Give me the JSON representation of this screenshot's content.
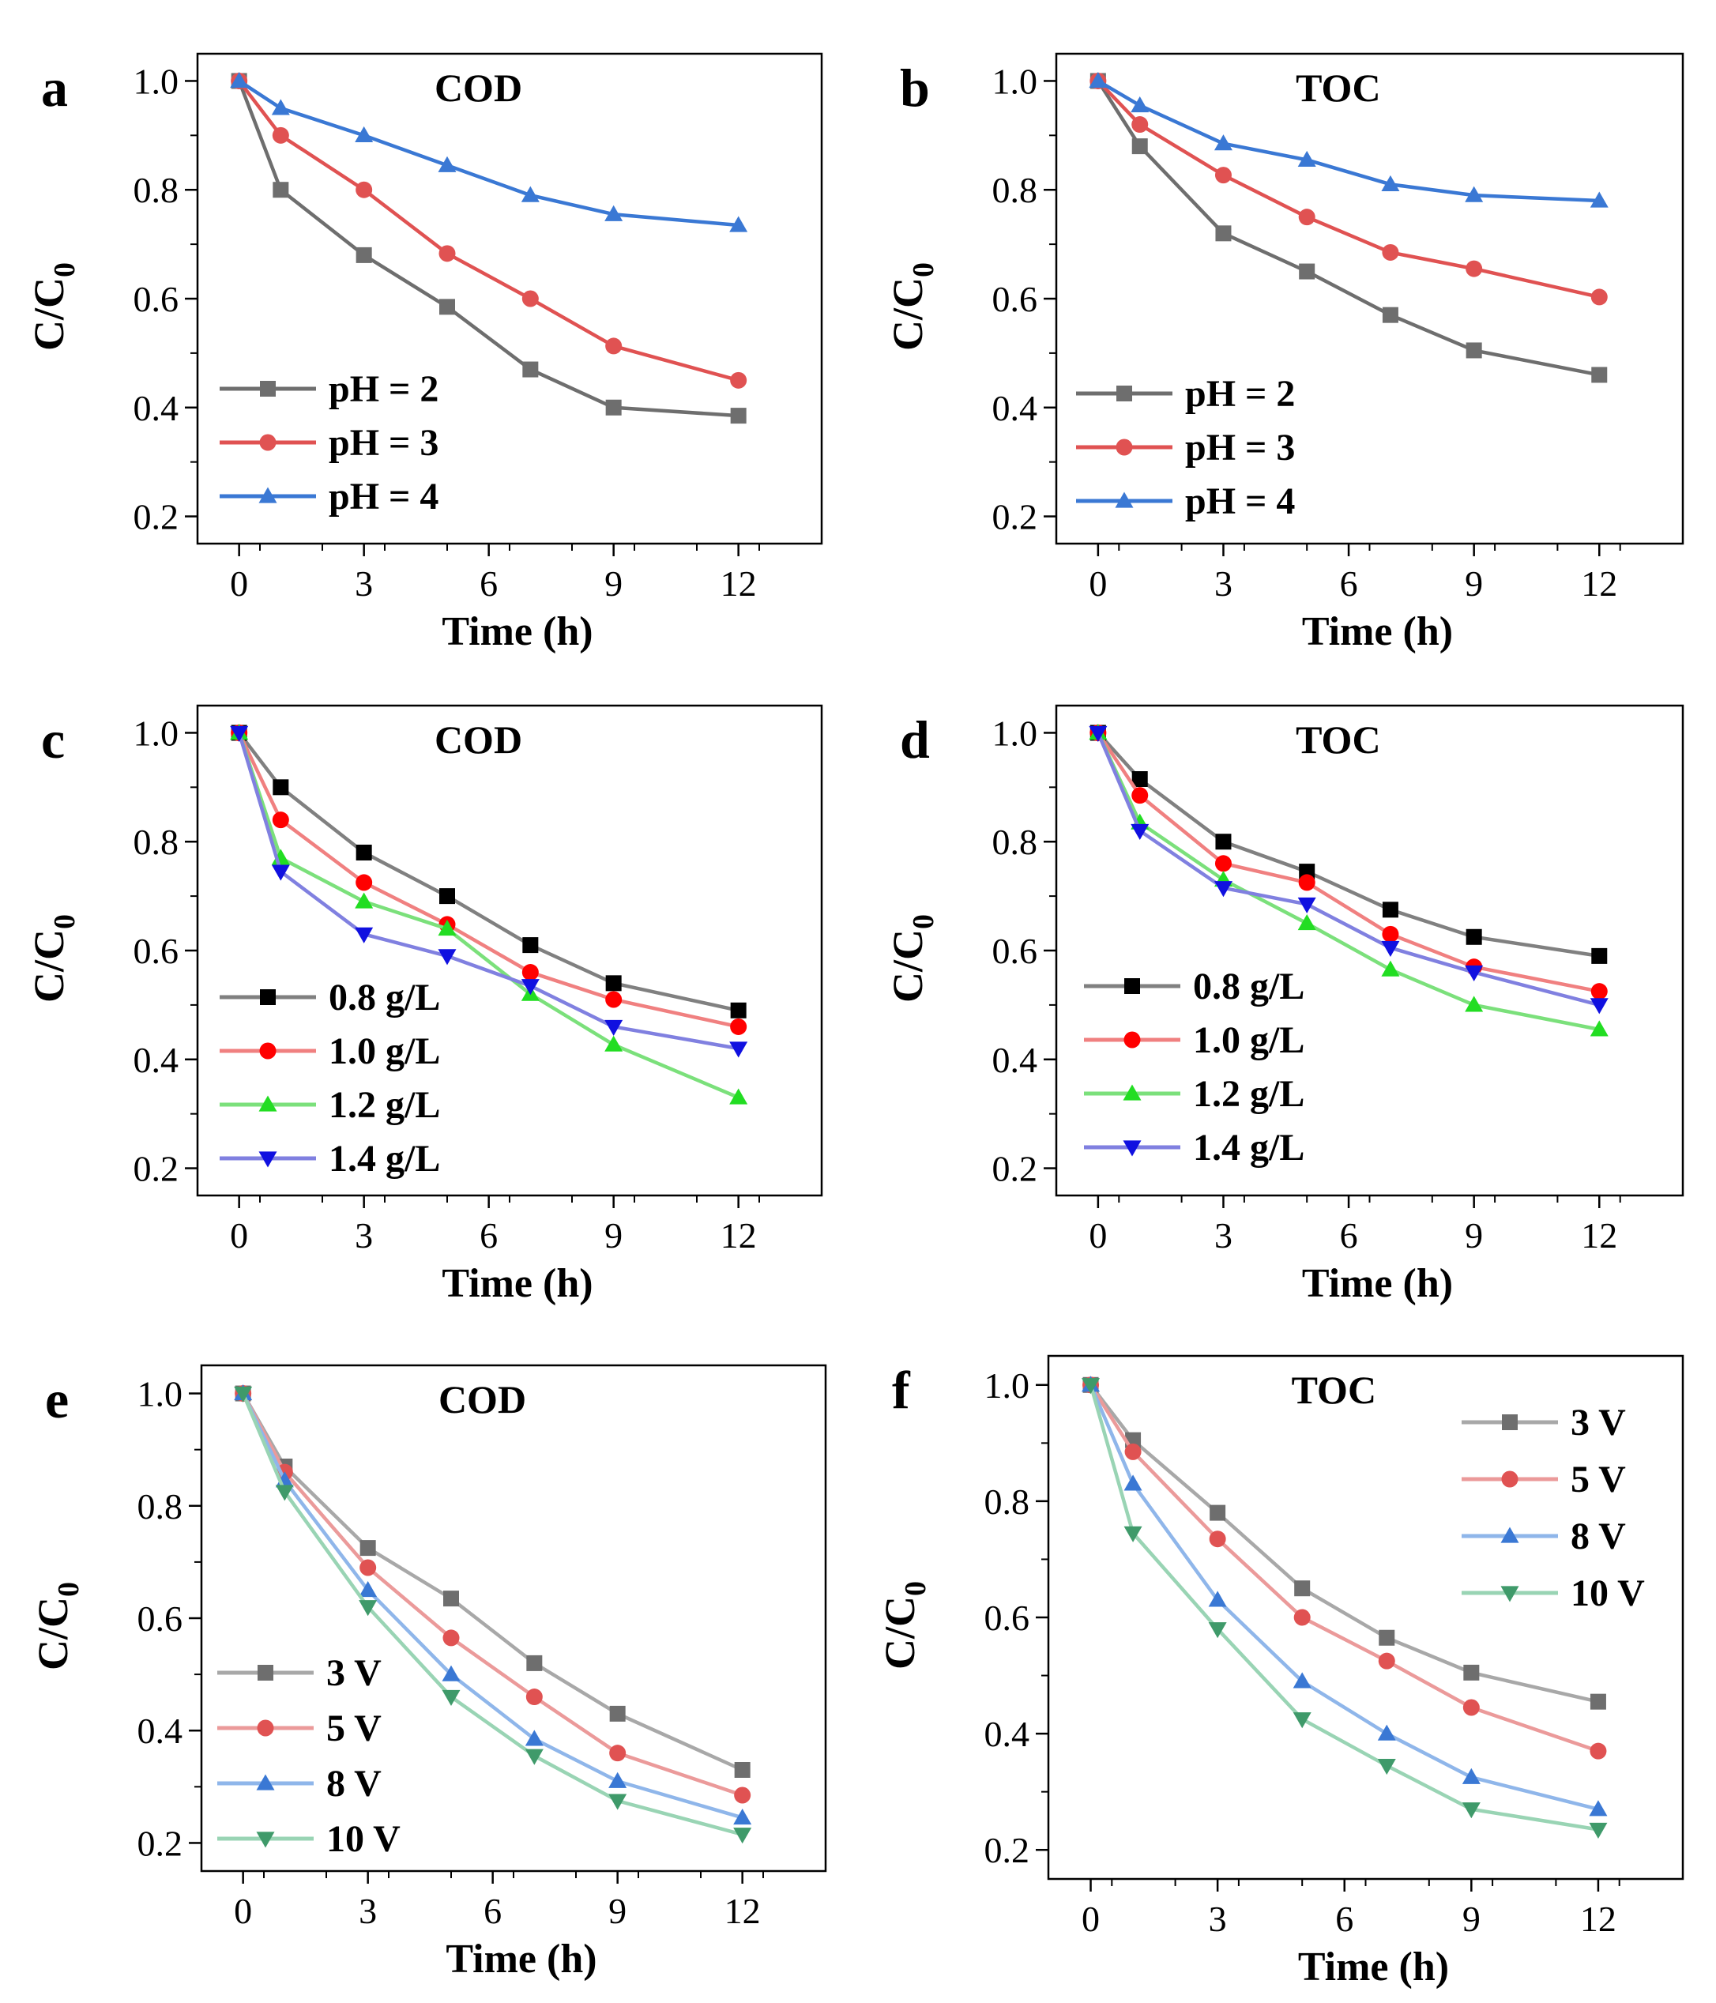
{
  "chart_data": [
    {
      "panel": "a",
      "title": "COD",
      "type": "line",
      "xlabel": "Time (h)",
      "ylabel": "C/C0",
      "ylabel_main": "C/C",
      "ylabel_sub": "0",
      "xticks": [
        0,
        3,
        6,
        9,
        12
      ],
      "yticks": [
        "0.2",
        "0.4",
        "0.6",
        "0.8",
        "1.0"
      ],
      "xlim": [
        -1,
        14
      ],
      "ylim": [
        0.15,
        1.05
      ],
      "x": [
        0,
        1,
        3,
        5,
        7,
        9,
        12
      ],
      "legend_position": "bottom-left",
      "series": [
        {
          "name": "pH = 2",
          "color": "#6e6e6e",
          "marker": "square",
          "values": [
            1.0,
            0.8,
            0.68,
            0.585,
            0.47,
            0.4,
            0.385
          ]
        },
        {
          "name": "pH = 3",
          "color": "#e05252",
          "marker": "circle",
          "values": [
            1.0,
            0.9,
            0.8,
            0.683,
            0.6,
            0.513,
            0.45
          ]
        },
        {
          "name": "pH = 4",
          "color": "#3a78d4",
          "marker": "triangle-up",
          "values": [
            1.0,
            0.95,
            0.9,
            0.845,
            0.79,
            0.755,
            0.735
          ]
        }
      ]
    },
    {
      "panel": "b",
      "title": "TOC",
      "type": "line",
      "xlabel": "Time (h)",
      "ylabel": "C/C0",
      "ylabel_main": "C/C",
      "ylabel_sub": "0",
      "xticks": [
        0,
        3,
        6,
        9,
        12
      ],
      "yticks": [
        "0.2",
        "0.4",
        "0.6",
        "0.8",
        "1.0"
      ],
      "xlim": [
        -1,
        14
      ],
      "ylim": [
        0.15,
        1.05
      ],
      "x": [
        0,
        1,
        3,
        5,
        7,
        9,
        12
      ],
      "legend_position": "bottom-left",
      "series": [
        {
          "name": "pH = 2",
          "color": "#6e6e6e",
          "marker": "square",
          "values": [
            1.0,
            0.88,
            0.72,
            0.65,
            0.57,
            0.505,
            0.46
          ]
        },
        {
          "name": "pH = 3",
          "color": "#e05252",
          "marker": "circle",
          "values": [
            1.0,
            0.92,
            0.827,
            0.75,
            0.685,
            0.655,
            0.603
          ]
        },
        {
          "name": "pH = 4",
          "color": "#3a78d4",
          "marker": "triangle-up",
          "values": [
            1.0,
            0.955,
            0.885,
            0.855,
            0.81,
            0.79,
            0.78
          ]
        }
      ]
    },
    {
      "panel": "c",
      "title": "COD",
      "type": "line",
      "xlabel": "Time (h)",
      "ylabel": "C/C0",
      "ylabel_main": "C/C",
      "ylabel_sub": "0",
      "xticks": [
        0,
        3,
        6,
        9,
        12
      ],
      "yticks": [
        "0.2",
        "0.4",
        "0.6",
        "0.8",
        "1.0"
      ],
      "xlim": [
        -1,
        14
      ],
      "ylim": [
        0.15,
        1.05
      ],
      "x": [
        0,
        1,
        3,
        5,
        7,
        9,
        12
      ],
      "legend_position": "bottom-left",
      "series": [
        {
          "name": "0.8 g/L",
          "color": "#000000",
          "line_color": "#808080",
          "marker": "square",
          "values": [
            1.0,
            0.9,
            0.78,
            0.7,
            0.61,
            0.54,
            0.49
          ]
        },
        {
          "name": "1.0 g/L",
          "color": "#ff0000",
          "line_color": "#f08080",
          "marker": "circle",
          "values": [
            1.0,
            0.84,
            0.725,
            0.648,
            0.56,
            0.51,
            0.46
          ]
        },
        {
          "name": "1.2 g/L",
          "color": "#22dd22",
          "line_color": "#7be07b",
          "marker": "triangle-up",
          "values": [
            1.0,
            0.77,
            0.69,
            0.64,
            0.52,
            0.427,
            0.33
          ]
        },
        {
          "name": "1.4 g/L",
          "color": "#1010e0",
          "line_color": "#8080e0",
          "marker": "triangle-down",
          "values": [
            1.0,
            0.745,
            0.63,
            0.59,
            0.535,
            0.46,
            0.42
          ]
        }
      ]
    },
    {
      "panel": "d",
      "title": "TOC",
      "type": "line",
      "xlabel": "Time (h)",
      "ylabel": "C/C0",
      "ylabel_main": "C/C",
      "ylabel_sub": "0",
      "xticks": [
        0,
        3,
        6,
        9,
        12
      ],
      "yticks": [
        "0.2",
        "0.4",
        "0.6",
        "0.8",
        "1.0"
      ],
      "xlim": [
        -1,
        14
      ],
      "ylim": [
        0.15,
        1.05
      ],
      "x": [
        0,
        1,
        3,
        5,
        7,
        9,
        12
      ],
      "legend_position": "bottom-left",
      "series": [
        {
          "name": "0.8 g/L",
          "color": "#000000",
          "line_color": "#808080",
          "marker": "square",
          "values": [
            1.0,
            0.915,
            0.8,
            0.745,
            0.675,
            0.625,
            0.59
          ]
        },
        {
          "name": "1.0 g/L",
          "color": "#ff0000",
          "line_color": "#f08080",
          "marker": "circle",
          "values": [
            1.0,
            0.885,
            0.76,
            0.725,
            0.63,
            0.57,
            0.525
          ]
        },
        {
          "name": "1.2 g/L",
          "color": "#22dd22",
          "line_color": "#7be07b",
          "marker": "triangle-up",
          "values": [
            1.0,
            0.835,
            0.73,
            0.65,
            0.565,
            0.5,
            0.455
          ]
        },
        {
          "name": "1.4 g/L",
          "color": "#1010e0",
          "line_color": "#8080e0",
          "marker": "triangle-down",
          "values": [
            1.0,
            0.82,
            0.715,
            0.685,
            0.605,
            0.56,
            0.5
          ]
        }
      ]
    },
    {
      "panel": "e",
      "title": "COD",
      "type": "line",
      "xlabel": "Time (h)",
      "ylabel": "C/C0",
      "ylabel_main": "C/C",
      "ylabel_sub": "0",
      "xticks": [
        0,
        3,
        6,
        9,
        12
      ],
      "yticks": [
        "0.2",
        "0.4",
        "0.6",
        "0.8",
        "1.0"
      ],
      "xlim": [
        -1,
        14
      ],
      "ylim": [
        0.15,
        1.05
      ],
      "x": [
        0,
        1,
        3,
        5,
        7,
        9,
        12
      ],
      "legend_position": "bottom-left",
      "series": [
        {
          "name": "3 V",
          "color": "#6e6e6e",
          "line_color": "#a8a8a8",
          "marker": "square",
          "values": [
            1.0,
            0.87,
            0.725,
            0.635,
            0.52,
            0.43,
            0.33
          ]
        },
        {
          "name": "5 V",
          "color": "#e05252",
          "line_color": "#eb9a9a",
          "marker": "circle",
          "values": [
            1.0,
            0.86,
            0.69,
            0.565,
            0.46,
            0.36,
            0.285
          ]
        },
        {
          "name": "8 V",
          "color": "#3a78d4",
          "line_color": "#8fb6ea",
          "marker": "triangle-up",
          "values": [
            1.0,
            0.845,
            0.65,
            0.5,
            0.385,
            0.31,
            0.245
          ]
        },
        {
          "name": "10 V",
          "color": "#3f9a6a",
          "line_color": "#99d4b4",
          "marker": "triangle-down",
          "values": [
            1.0,
            0.825,
            0.62,
            0.46,
            0.355,
            0.275,
            0.215
          ]
        }
      ]
    },
    {
      "panel": "f",
      "title": "TOC",
      "type": "line",
      "xlabel": "Time (h)",
      "ylabel": "C/C0",
      "ylabel_main": "C/C",
      "ylabel_sub": "0",
      "xticks": [
        0,
        3,
        6,
        9,
        12
      ],
      "yticks": [
        "0.2",
        "0.4",
        "0.6",
        "0.8",
        "1.0"
      ],
      "xlim": [
        -1,
        14
      ],
      "ylim": [
        0.15,
        1.05
      ],
      "x": [
        0,
        1,
        3,
        5,
        7,
        9,
        12
      ],
      "legend_position": "top-right",
      "series": [
        {
          "name": "3 V",
          "color": "#6e6e6e",
          "line_color": "#a8a8a8",
          "marker": "square",
          "values": [
            1.0,
            0.905,
            0.78,
            0.65,
            0.565,
            0.505,
            0.455
          ]
        },
        {
          "name": "5 V",
          "color": "#e05252",
          "line_color": "#eb9a9a",
          "marker": "circle",
          "values": [
            1.0,
            0.885,
            0.735,
            0.6,
            0.525,
            0.445,
            0.37
          ]
        },
        {
          "name": "8 V",
          "color": "#3a78d4",
          "line_color": "#8fb6ea",
          "marker": "triangle-up",
          "values": [
            1.0,
            0.83,
            0.63,
            0.49,
            0.4,
            0.325,
            0.27
          ]
        },
        {
          "name": "10 V",
          "color": "#3f9a6a",
          "line_color": "#99d4b4",
          "marker": "triangle-down",
          "values": [
            1.0,
            0.745,
            0.58,
            0.425,
            0.345,
            0.27,
            0.235
          ]
        }
      ]
    }
  ]
}
